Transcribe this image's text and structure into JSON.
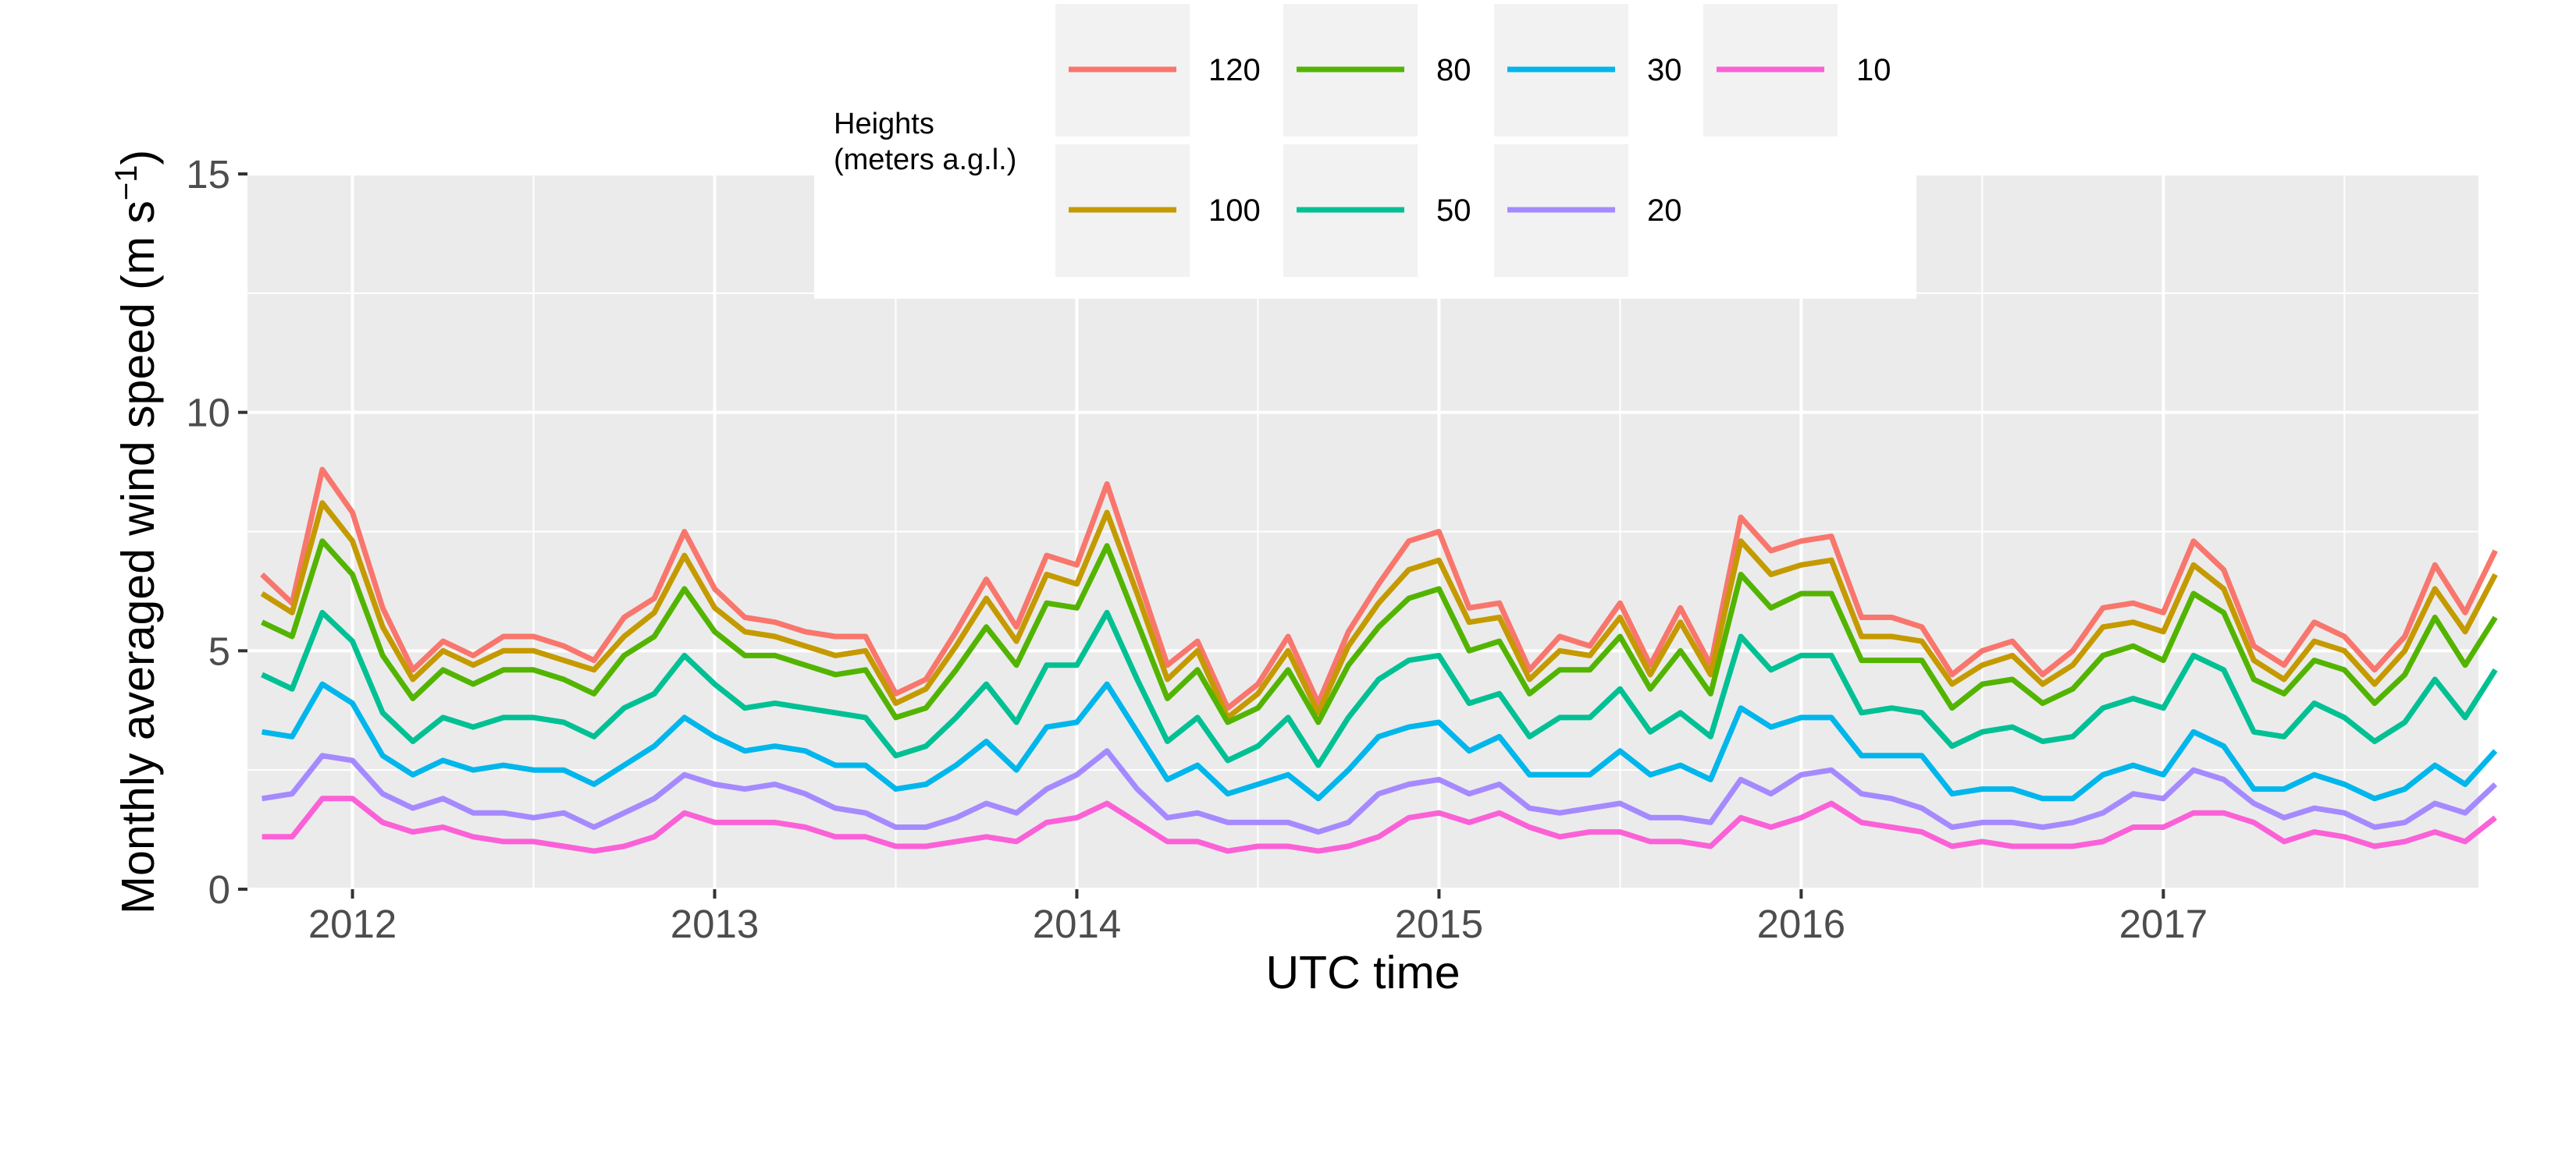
{
  "chart_data": {
    "type": "line",
    "xlabel": "UTC time",
    "ylabel": "Monthly averaged wind speed (m s",
    "ylabel_sup": "−1",
    "ylabel_close": ")",
    "x_ticks": [
      {
        "label": "2012",
        "value": 2012.0
      },
      {
        "label": "2013",
        "value": 2013.0
      },
      {
        "label": "2014",
        "value": 2014.0
      },
      {
        "label": "2015",
        "value": 2015.0
      },
      {
        "label": "2016",
        "value": 2016.0
      },
      {
        "label": "2017",
        "value": 2017.0
      }
    ],
    "y_ticks": [
      0,
      5,
      10,
      15
    ],
    "xlim": [
      2011.71,
      2017.87
    ],
    "ylim": [
      0,
      15
    ],
    "grid": true,
    "legend": {
      "title_line1": "Heights",
      "title_line2": "(meters a.g.l.)",
      "placement": "top"
    },
    "x_start": "2011-10",
    "series": [
      {
        "name": "120",
        "color": "#F8766D",
        "values": [
          6.6,
          6.0,
          8.8,
          7.9,
          5.9,
          4.6,
          5.2,
          4.9,
          5.3,
          5.3,
          5.1,
          4.8,
          5.7,
          6.1,
          7.5,
          6.3,
          5.7,
          5.6,
          5.4,
          5.3,
          5.3,
          4.1,
          4.4,
          5.4,
          6.5,
          5.5,
          7.0,
          6.8,
          8.5,
          6.6,
          4.7,
          5.2,
          3.8,
          4.3,
          5.3,
          3.9,
          5.4,
          6.4,
          7.3,
          7.5,
          5.9,
          6.0,
          4.6,
          5.3,
          5.1,
          6.0,
          4.7,
          5.9,
          4.7,
          7.8,
          7.1,
          7.3,
          7.4,
          5.7,
          5.7,
          5.5,
          4.5,
          5.0,
          5.2,
          4.5,
          5.0,
          5.9,
          6.0,
          5.8,
          7.3,
          6.7,
          5.1,
          4.7,
          5.6,
          5.3,
          4.6,
          5.3,
          6.8,
          5.8,
          7.1
        ]
      },
      {
        "name": "100",
        "color": "#C49A00",
        "values": [
          6.2,
          5.8,
          8.1,
          7.3,
          5.5,
          4.4,
          5.0,
          4.7,
          5.0,
          5.0,
          4.8,
          4.6,
          5.3,
          5.8,
          7.0,
          5.9,
          5.4,
          5.3,
          5.1,
          4.9,
          5.0,
          3.9,
          4.2,
          5.1,
          6.1,
          5.2,
          6.6,
          6.4,
          7.9,
          6.2,
          4.4,
          5.0,
          3.6,
          4.1,
          5.0,
          3.7,
          5.1,
          6.0,
          6.7,
          6.9,
          5.6,
          5.7,
          4.4,
          5.0,
          4.9,
          5.7,
          4.5,
          5.6,
          4.5,
          7.3,
          6.6,
          6.8,
          6.9,
          5.3,
          5.3,
          5.2,
          4.3,
          4.7,
          4.9,
          4.3,
          4.7,
          5.5,
          5.6,
          5.4,
          6.8,
          6.3,
          4.8,
          4.4,
          5.2,
          5.0,
          4.3,
          5.0,
          6.3,
          5.4,
          6.6
        ]
      },
      {
        "name": "80",
        "color": "#53B400",
        "values": [
          5.6,
          5.3,
          7.3,
          6.6,
          4.9,
          4.0,
          4.6,
          4.3,
          4.6,
          4.6,
          4.4,
          4.1,
          4.9,
          5.3,
          6.3,
          5.4,
          4.9,
          4.9,
          4.7,
          4.5,
          4.6,
          3.6,
          3.8,
          4.6,
          5.5,
          4.7,
          6.0,
          5.9,
          7.2,
          5.6,
          4.0,
          4.6,
          3.5,
          3.8,
          4.6,
          3.5,
          4.7,
          5.5,
          6.1,
          6.3,
          5.0,
          5.2,
          4.1,
          4.6,
          4.6,
          5.3,
          4.2,
          5.0,
          4.1,
          6.6,
          5.9,
          6.2,
          6.2,
          4.8,
          4.8,
          4.8,
          3.8,
          4.3,
          4.4,
          3.9,
          4.2,
          4.9,
          5.1,
          4.8,
          6.2,
          5.8,
          4.4,
          4.1,
          4.8,
          4.6,
          3.9,
          4.5,
          5.7,
          4.7,
          5.7
        ]
      },
      {
        "name": "50",
        "color": "#00C094",
        "values": [
          4.5,
          4.2,
          5.8,
          5.2,
          3.7,
          3.1,
          3.6,
          3.4,
          3.6,
          3.6,
          3.5,
          3.2,
          3.8,
          4.1,
          4.9,
          4.3,
          3.8,
          3.9,
          3.8,
          3.7,
          3.6,
          2.8,
          3.0,
          3.6,
          4.3,
          3.5,
          4.7,
          4.7,
          5.8,
          4.4,
          3.1,
          3.6,
          2.7,
          3.0,
          3.6,
          2.6,
          3.6,
          4.4,
          4.8,
          4.9,
          3.9,
          4.1,
          3.2,
          3.6,
          3.6,
          4.2,
          3.3,
          3.7,
          3.2,
          5.3,
          4.6,
          4.9,
          4.9,
          3.7,
          3.8,
          3.7,
          3.0,
          3.3,
          3.4,
          3.1,
          3.2,
          3.8,
          4.0,
          3.8,
          4.9,
          4.6,
          3.3,
          3.2,
          3.9,
          3.6,
          3.1,
          3.5,
          4.4,
          3.6,
          4.6
        ]
      },
      {
        "name": "30",
        "color": "#00B6EB",
        "values": [
          3.3,
          3.2,
          4.3,
          3.9,
          2.8,
          2.4,
          2.7,
          2.5,
          2.6,
          2.5,
          2.5,
          2.2,
          2.6,
          3.0,
          3.6,
          3.2,
          2.9,
          3.0,
          2.9,
          2.6,
          2.6,
          2.1,
          2.2,
          2.6,
          3.1,
          2.5,
          3.4,
          3.5,
          4.3,
          3.3,
          2.3,
          2.6,
          2.0,
          2.2,
          2.4,
          1.9,
          2.5,
          3.2,
          3.4,
          3.5,
          2.9,
          3.2,
          2.4,
          2.4,
          2.4,
          2.9,
          2.4,
          2.6,
          2.3,
          3.8,
          3.4,
          3.6,
          3.6,
          2.8,
          2.8,
          2.8,
          2.0,
          2.1,
          2.1,
          1.9,
          1.9,
          2.4,
          2.6,
          2.4,
          3.3,
          3.0,
          2.1,
          2.1,
          2.4,
          2.2,
          1.9,
          2.1,
          2.6,
          2.2,
          2.9
        ]
      },
      {
        "name": "20",
        "color": "#A58AFF",
        "values": [
          1.9,
          2.0,
          2.8,
          2.7,
          2.0,
          1.7,
          1.9,
          1.6,
          1.6,
          1.5,
          1.6,
          1.3,
          1.6,
          1.9,
          2.4,
          2.2,
          2.1,
          2.2,
          2.0,
          1.7,
          1.6,
          1.3,
          1.3,
          1.5,
          1.8,
          1.6,
          2.1,
          2.4,
          2.9,
          2.1,
          1.5,
          1.6,
          1.4,
          1.4,
          1.4,
          1.2,
          1.4,
          2.0,
          2.2,
          2.3,
          2.0,
          2.2,
          1.7,
          1.6,
          1.7,
          1.8,
          1.5,
          1.5,
          1.4,
          2.3,
          2.0,
          2.4,
          2.5,
          2.0,
          1.9,
          1.7,
          1.3,
          1.4,
          1.4,
          1.3,
          1.4,
          1.6,
          2.0,
          1.9,
          2.5,
          2.3,
          1.8,
          1.5,
          1.7,
          1.6,
          1.3,
          1.4,
          1.8,
          1.6,
          2.2
        ]
      },
      {
        "name": "10",
        "color": "#FB61D7",
        "values": [
          1.1,
          1.1,
          1.9,
          1.9,
          1.4,
          1.2,
          1.3,
          1.1,
          1.0,
          1.0,
          0.9,
          0.8,
          0.9,
          1.1,
          1.6,
          1.4,
          1.4,
          1.4,
          1.3,
          1.1,
          1.1,
          0.9,
          0.9,
          1.0,
          1.1,
          1.0,
          1.4,
          1.5,
          1.8,
          1.4,
          1.0,
          1.0,
          0.8,
          0.9,
          0.9,
          0.8,
          0.9,
          1.1,
          1.5,
          1.6,
          1.4,
          1.6,
          1.3,
          1.1,
          1.2,
          1.2,
          1.0,
          1.0,
          0.9,
          1.5,
          1.3,
          1.5,
          1.8,
          1.4,
          1.3,
          1.2,
          0.9,
          1.0,
          0.9,
          0.9,
          0.9,
          1.0,
          1.3,
          1.3,
          1.6,
          1.6,
          1.4,
          1.0,
          1.2,
          1.1,
          0.9,
          1.0,
          1.2,
          1.0,
          1.5
        ]
      }
    ]
  }
}
